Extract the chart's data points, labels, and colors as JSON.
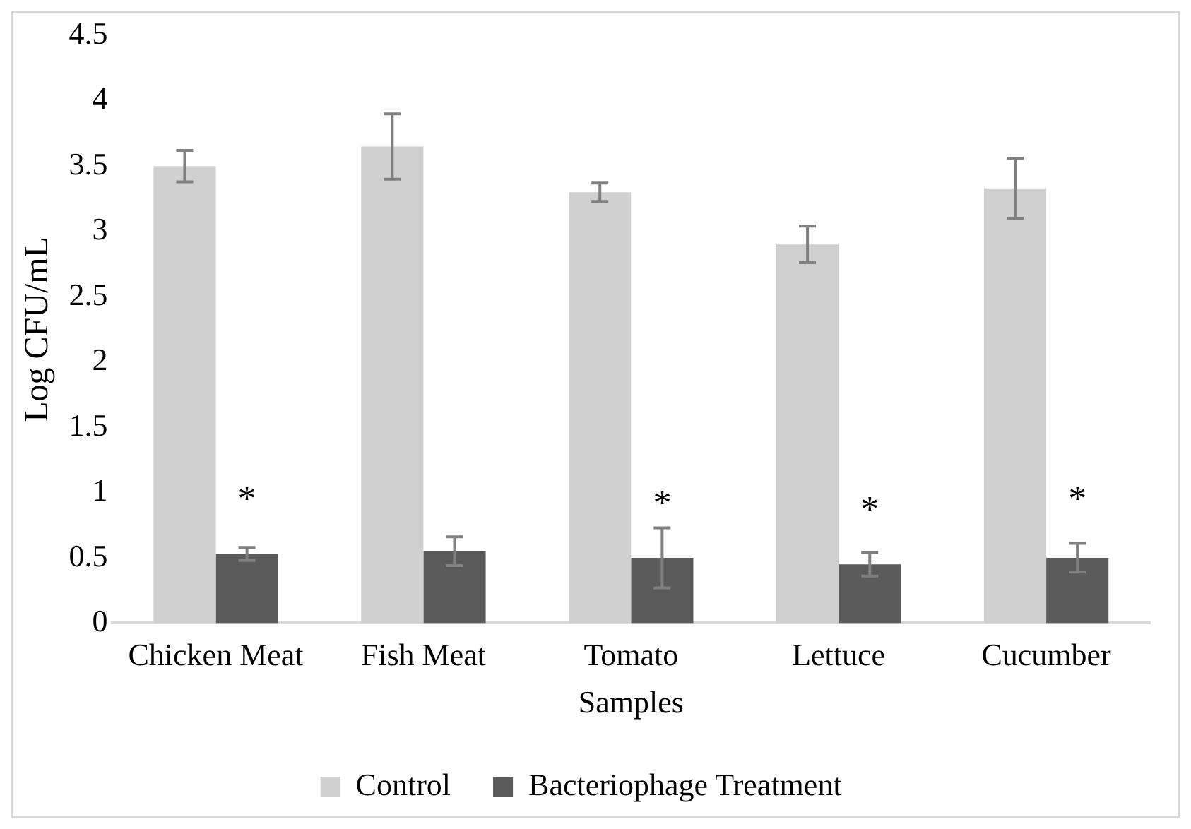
{
  "chart_data": {
    "type": "bar",
    "xlabel": "Samples",
    "ylabel": "Log CFU/mL",
    "categories": [
      "Chicken Meat",
      "Fish Meat",
      "Tomato",
      "Lettuce",
      "Cucumber"
    ],
    "series": [
      {
        "name": "Control",
        "color": "#d0d0d0",
        "values": [
          3.5,
          3.65,
          3.3,
          2.9,
          3.33
        ],
        "errors": [
          0.12,
          0.25,
          0.07,
          0.14,
          0.23
        ]
      },
      {
        "name": "Bacteriophage Treatment",
        "color": "#5a5a5a",
        "values": [
          0.53,
          0.55,
          0.5,
          0.45,
          0.5
        ],
        "errors": [
          0.05,
          0.11,
          0.23,
          0.09,
          0.11
        ]
      }
    ],
    "ylim": [
      0,
      4.5
    ],
    "yticks": [
      0,
      0.5,
      1,
      1.5,
      2,
      2.5,
      3,
      3.5,
      4,
      4.5
    ],
    "grid": false,
    "legend": "bottom",
    "annotations": [
      {
        "text": "*",
        "x": "Chicken Meat",
        "y": 1.0
      },
      {
        "text": "*",
        "x": "Tomato",
        "y": 0.97
      },
      {
        "text": "*",
        "x": "Lettuce",
        "y": 0.92
      },
      {
        "text": "*",
        "x": "Cucumber",
        "y": 1.0
      }
    ]
  }
}
